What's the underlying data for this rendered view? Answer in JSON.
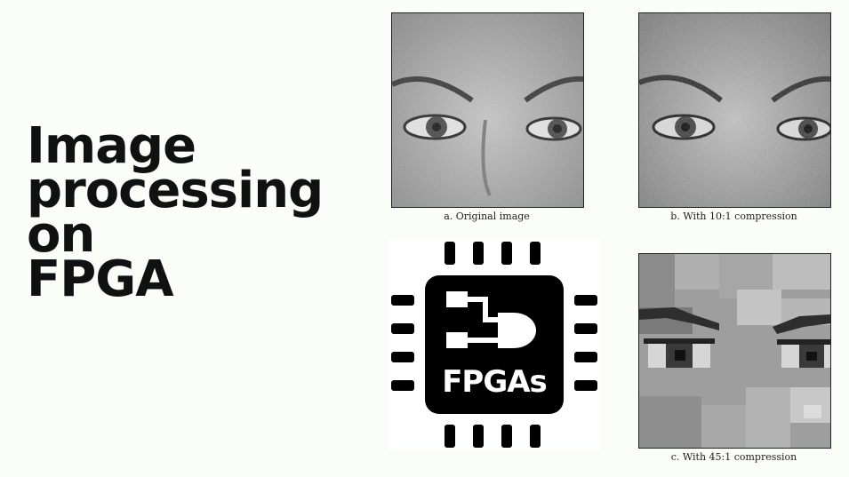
{
  "title": {
    "line1": "Image",
    "line2": "processing",
    "line3": "on",
    "line4": "FPGA"
  },
  "panels": [
    {
      "caption": "a.  Original image"
    },
    {
      "caption": "b. With 10:1 compression"
    },
    {
      "caption": "c. With 45:1 compression"
    }
  ],
  "chip": {
    "label": "FPGAs",
    "icon": "fpga-chip-icon",
    "color": "#000000"
  }
}
